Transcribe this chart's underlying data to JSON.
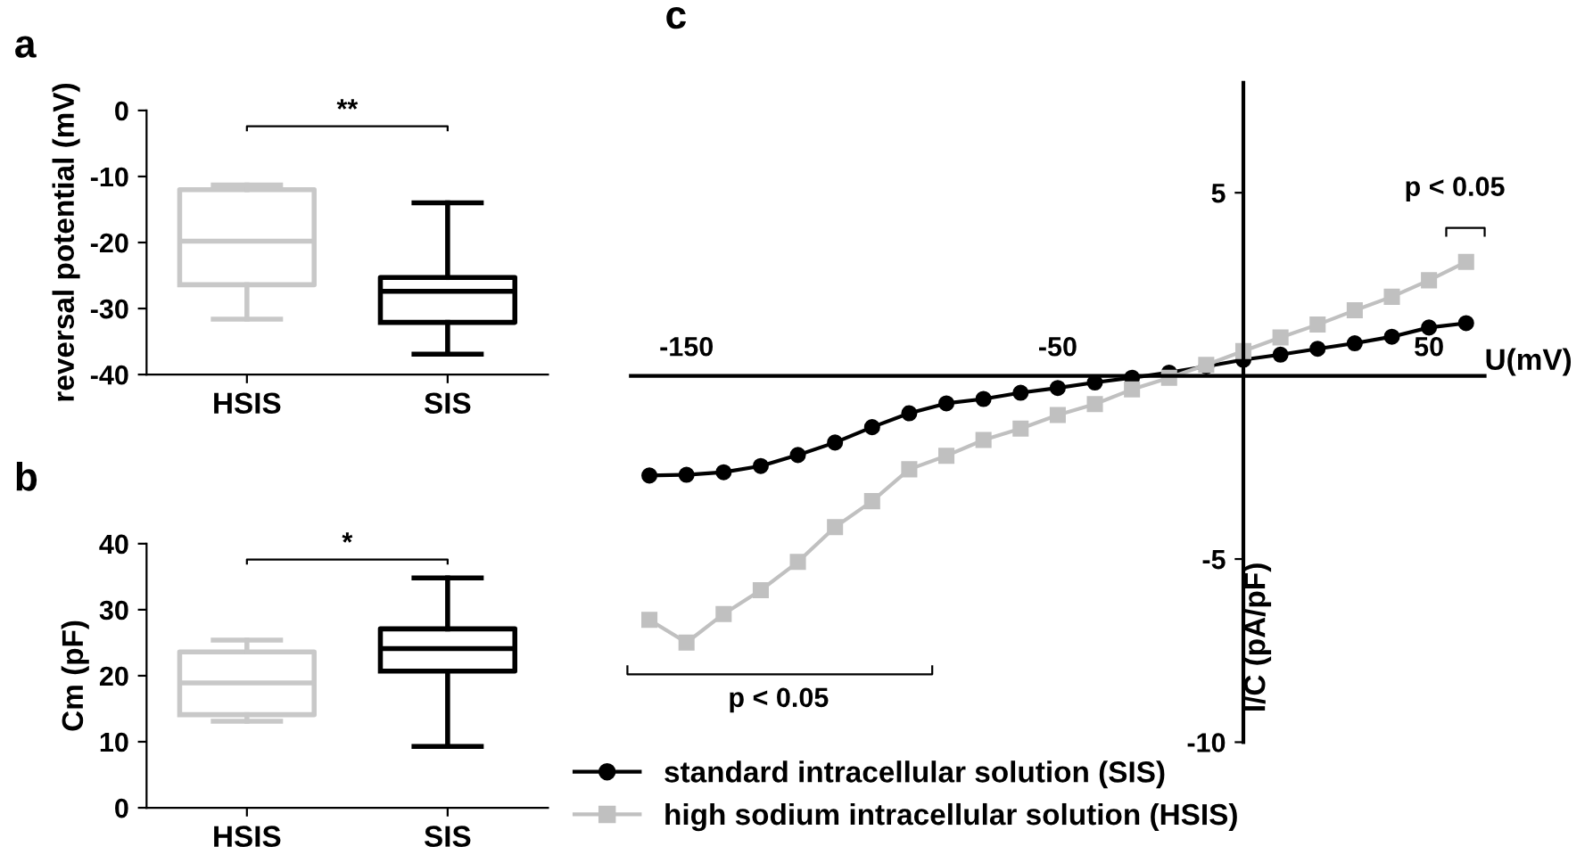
{
  "chart_data": [
    {
      "type": "box",
      "title": "a",
      "ylabel": "reversal potential (mV)",
      "categories": [
        "HSIS",
        "SIS"
      ],
      "boxes": [
        {
          "low": -31.6,
          "q1": -26.4,
          "median": -19.8,
          "q3": -12.0,
          "high": -11.3
        },
        {
          "low": -36.9,
          "q1": -32.1,
          "median": -27.4,
          "q3": -25.3,
          "high": -14.0
        }
      ],
      "colors": [
        "#c8c8c8",
        "#000000"
      ],
      "ylim": [
        -40,
        0
      ],
      "yticks": [
        -40,
        -30,
        -20,
        -10,
        0
      ],
      "annotations": [
        "**"
      ]
    },
    {
      "type": "box",
      "title": "b",
      "ylabel": "Cm (pF)",
      "categories": [
        "HSIS",
        "SIS"
      ],
      "boxes": [
        {
          "low": 13.1,
          "q1": 14.1,
          "median": 18.9,
          "q3": 23.6,
          "high": 25.4
        },
        {
          "low": 9.3,
          "q1": 20.7,
          "median": 24.1,
          "q3": 27.1,
          "high": 34.8
        }
      ],
      "colors": [
        "#c8c8c8",
        "#000000"
      ],
      "ylim": [
        0,
        40
      ],
      "yticks": [
        0,
        10,
        20,
        30,
        40
      ],
      "annotations": [
        "*"
      ]
    },
    {
      "type": "line",
      "title": "c",
      "xlabel": "U(mV)",
      "ylabel": "I/C (pA/pF)",
      "x": [
        -160,
        -150,
        -140,
        -130,
        -120,
        -110,
        -100,
        -90,
        -80,
        -70,
        -60,
        -50,
        -40,
        -30,
        -20,
        -10,
        0,
        10,
        20,
        30,
        40,
        50,
        60
      ],
      "series": [
        {
          "name": "standard intracellular solution (SIS)",
          "color": "#000000",
          "marker": "circle",
          "values": [
            -2.72,
            -2.7,
            -2.63,
            -2.46,
            -2.16,
            -1.82,
            -1.4,
            -1.02,
            -0.75,
            -0.63,
            -0.46,
            -0.33,
            -0.18,
            -0.05,
            0.09,
            0.26,
            0.44,
            0.58,
            0.74,
            0.89,
            1.07,
            1.32,
            1.44
          ]
        },
        {
          "name": "high sodium intracellular solution (HSIS)",
          "color": "#c0c0c0",
          "marker": "square",
          "values": [
            -6.66,
            -7.28,
            -6.5,
            -5.85,
            -5.08,
            -4.13,
            -3.42,
            -2.55,
            -2.18,
            -1.75,
            -1.44,
            -1.07,
            -0.77,
            -0.37,
            -0.05,
            0.3,
            0.68,
            1.05,
            1.4,
            1.79,
            2.16,
            2.61,
            3.11
          ]
        }
      ],
      "xlim": [
        -165,
        65
      ],
      "xticks": [
        -150,
        -50,
        50
      ],
      "ylim": [
        -10,
        8
      ],
      "yticks": [
        -10,
        -5,
        5
      ],
      "legend": "bottom",
      "line_style": "solid",
      "annotations": [
        "p < 0.05",
        "p < 0.05"
      ]
    }
  ]
}
